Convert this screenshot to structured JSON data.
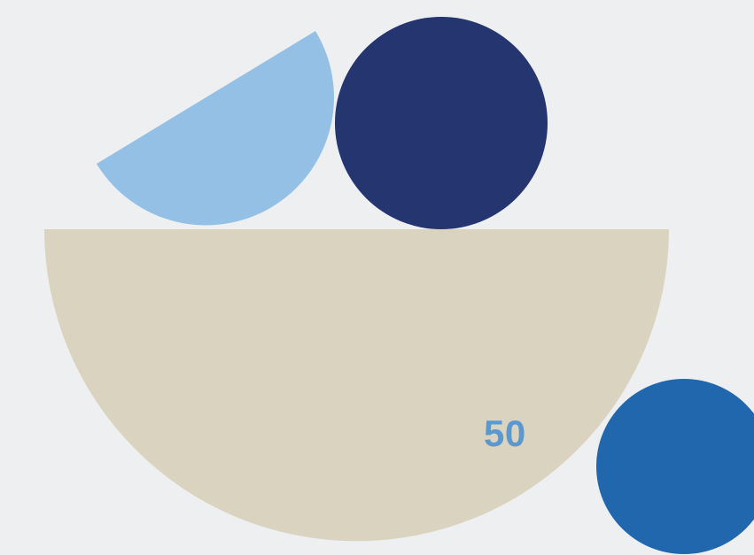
{
  "page": {
    "number": "50"
  },
  "colors": {
    "background": "#EDEFF1",
    "bowl": "#DAD3BF",
    "light_blue_half_disc": "#93C0E4",
    "navy_circle": "#243570",
    "blue_circle": "#2167AE",
    "page_number_text": "#5B98CF"
  }
}
